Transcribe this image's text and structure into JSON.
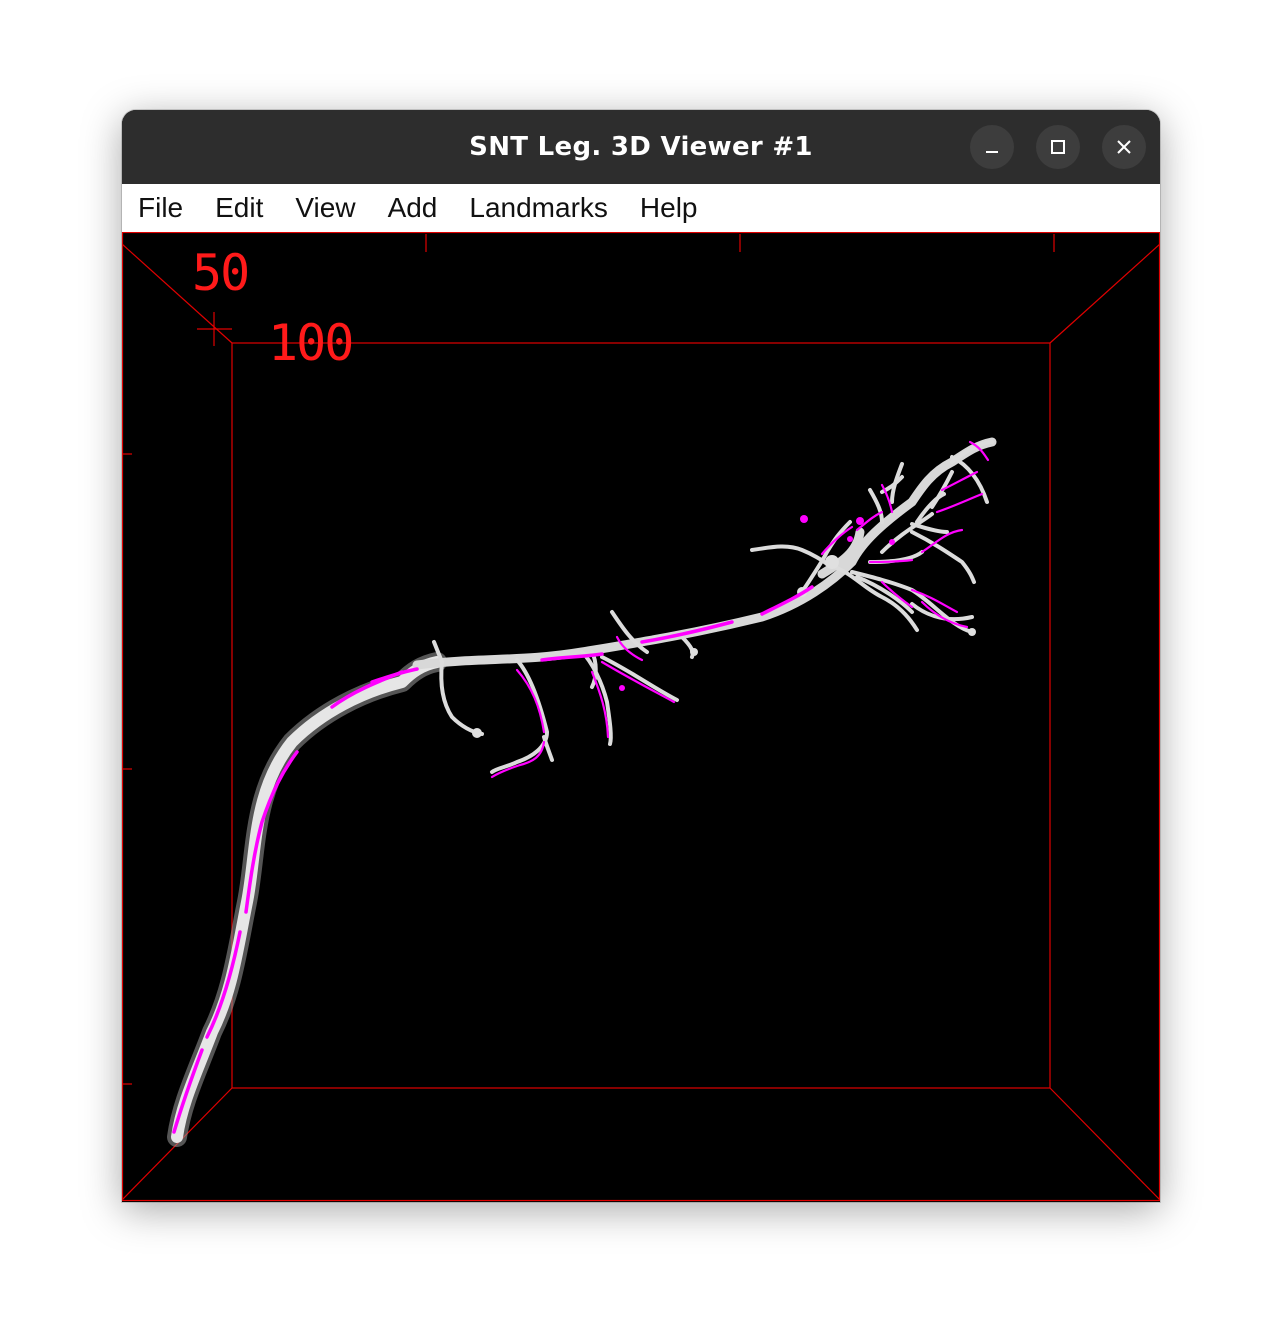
{
  "window": {
    "title": "SNT Leg. 3D Viewer #1"
  },
  "menu": {
    "items": [
      {
        "id": "file",
        "label": "File"
      },
      {
        "id": "edit",
        "label": "Edit"
      },
      {
        "id": "view",
        "label": "View"
      },
      {
        "id": "add",
        "label": "Add"
      },
      {
        "id": "landmarks",
        "label": "Landmarks"
      },
      {
        "id": "help",
        "label": "Help"
      }
    ]
  },
  "viewer": {
    "scale_labels": [
      "50",
      "100"
    ],
    "colors": {
      "background": "#000000",
      "bounding_box": "#ff0000",
      "neuron_surface": "#e0e0e0",
      "trace": "#ff00ff"
    }
  },
  "icons": {
    "minimize": "minimize-icon",
    "maximize": "maximize-icon",
    "close": "close-icon"
  }
}
